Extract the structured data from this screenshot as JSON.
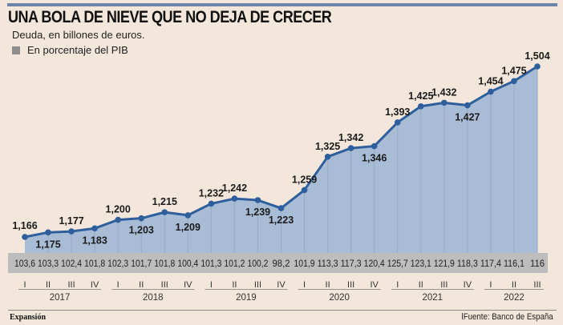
{
  "chart_data": {
    "type": "area",
    "title": "UNA BOLA DE NIEVE QUE NO DEJA DE CRECER",
    "subtitle": "Deuda, en billones de euros.",
    "legend": [
      {
        "label": "En porcentaje del PIB",
        "color": "#8e8e8e"
      }
    ],
    "xlabel": "",
    "ylabel": "",
    "grid": false,
    "ylim": [
      1.0,
      1.55
    ],
    "quarters": [
      "I",
      "II",
      "III",
      "IV",
      "I",
      "II",
      "III",
      "IV",
      "I",
      "II",
      "III",
      "IV",
      "I",
      "II",
      "III",
      "IV",
      "I",
      "II",
      "III",
      "IV",
      "I",
      "II",
      "III"
    ],
    "years": [
      {
        "label": "2017",
        "start": 0,
        "end": 3
      },
      {
        "label": "2018",
        "start": 4,
        "end": 7
      },
      {
        "label": "2019",
        "start": 8,
        "end": 11
      },
      {
        "label": "2020",
        "start": 12,
        "end": 15
      },
      {
        "label": "2021",
        "start": 16,
        "end": 19
      },
      {
        "label": "2022",
        "start": 20,
        "end": 22
      }
    ],
    "series": [
      {
        "name": "Deuda (billones de euros)",
        "values": [
          1.166,
          1.175,
          1.177,
          1.183,
          1.2,
          1.203,
          1.215,
          1.209,
          1.232,
          1.242,
          1.239,
          1.223,
          1.259,
          1.325,
          1.342,
          1.346,
          1.393,
          1.425,
          1.432,
          1.427,
          1.454,
          1.475,
          1.504
        ],
        "labels": [
          "1,166",
          "1,175",
          "1,177",
          "1,183",
          "1,200",
          "1,203",
          "1,215",
          "1,209",
          "1,232",
          "1,242",
          "1,239",
          "1,223",
          "1,259",
          "1,325",
          "1,342",
          "1,346",
          "1,393",
          "1,425",
          "1,432",
          "1,427",
          "1,454",
          "1,475",
          "1,504"
        ],
        "label_pos": [
          "above",
          "below",
          "above",
          "below",
          "above",
          "below",
          "above",
          "below",
          "above",
          "above",
          "below",
          "below",
          "above",
          "above",
          "above",
          "below",
          "above",
          "above",
          "above",
          "below",
          "above",
          "above",
          "above"
        ],
        "color": "#2e5f9c",
        "fill": "#a9bcd5"
      },
      {
        "name": "En porcentaje del PIB",
        "values": [
          103.6,
          103.3,
          102.4,
          101.8,
          102.3,
          101.7,
          101.8,
          100.4,
          101.3,
          101.2,
          100.2,
          98.2,
          101.9,
          113.3,
          117.3,
          120.4,
          125.7,
          123.1,
          121.9,
          118.3,
          117.4,
          116.1,
          116
        ],
        "labels": [
          "103,6",
          "103,3",
          "102,4",
          "101,8",
          "102,3",
          "101,7",
          "101,8",
          "100,4",
          "101,3",
          "101,2",
          "100,2",
          "98,2",
          "101,9",
          "113,3",
          "117,3",
          "120,4",
          "125,7",
          "123,1",
          "121,9",
          "118,3",
          "117,4",
          "116,1",
          "116"
        ]
      }
    ]
  },
  "footer": {
    "brand": "Expansión",
    "source": "lFuente: Banco de España"
  },
  "colors": {
    "background": "#f3e7dc",
    "line": "#2e5f9c",
    "area": "#a9bcd5",
    "band": "#bdbdbd",
    "topbar": "#6d85a8"
  }
}
